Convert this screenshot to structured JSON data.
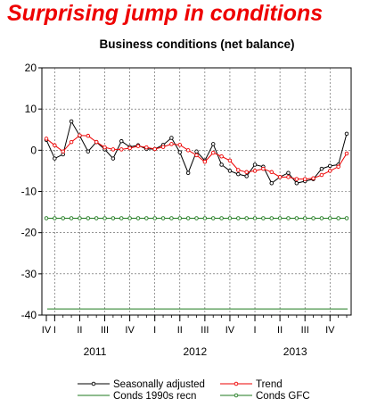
{
  "headline": "Surprising jump in conditions",
  "colors": {
    "headline": "#ee0000",
    "seasonally_adjusted": "#000000",
    "trend": "#ee0000",
    "conds_1990s": "#1e7a1e",
    "conds_gfc": "#1e7a1e"
  },
  "chart_data": {
    "type": "line",
    "title": "Business conditions (net balance)",
    "xlabel": "",
    "ylabel": "",
    "ylim": [
      -40,
      20
    ],
    "yticks": [
      20,
      10,
      0,
      -10,
      -20,
      -30,
      -40
    ],
    "grid": true,
    "legend_position": "bottom",
    "month_labels_mark": "|",
    "quarter_labels": [
      "IV",
      "I",
      "II",
      "III",
      "IV",
      "I",
      "II",
      "III",
      "IV",
      "I",
      "II",
      "III",
      "IV"
    ],
    "years": [
      "2011",
      "2012",
      "2013"
    ],
    "series": [
      {
        "name": "Seasonally adjusted",
        "color": "#000000",
        "marker": "open-circle",
        "values": [
          2.5,
          -2.0,
          -1.0,
          7.0,
          3.5,
          -0.3,
          2.0,
          0.2,
          -2.0,
          2.2,
          0.8,
          1.2,
          0.3,
          0.3,
          1.3,
          3.0,
          -0.5,
          -5.5,
          -0.3,
          -2.5,
          1.5,
          -3.5,
          -5.0,
          -5.8,
          -6.3,
          -3.5,
          -4.0,
          -8.0,
          -6.5,
          -5.5,
          -8.0,
          -7.5,
          -7.0,
          -4.5,
          -3.8,
          -3.5,
          4.0
        ]
      },
      {
        "name": "Trend",
        "color": "#ee0000",
        "marker": "open-circle",
        "values": [
          2.8,
          1.2,
          -0.3,
          2.0,
          3.6,
          3.5,
          2.0,
          0.7,
          0.2,
          0.2,
          0.5,
          1.0,
          0.7,
          0.3,
          0.8,
          1.5,
          1.3,
          0.0,
          -1.2,
          -2.8,
          -0.6,
          -1.5,
          -2.5,
          -4.8,
          -5.3,
          -5.0,
          -4.5,
          -5.3,
          -6.5,
          -6.5,
          -7.0,
          -7.0,
          -6.8,
          -6.0,
          -5.0,
          -4.0,
          -0.8
        ]
      },
      {
        "name": "Conds 1990s recn",
        "color": "#1e7a1e",
        "marker": "none",
        "constant": -38.5
      },
      {
        "name": "Conds GFC",
        "color": "#1e7a1e",
        "marker": "open-circle",
        "constant": -16.5
      }
    ]
  }
}
